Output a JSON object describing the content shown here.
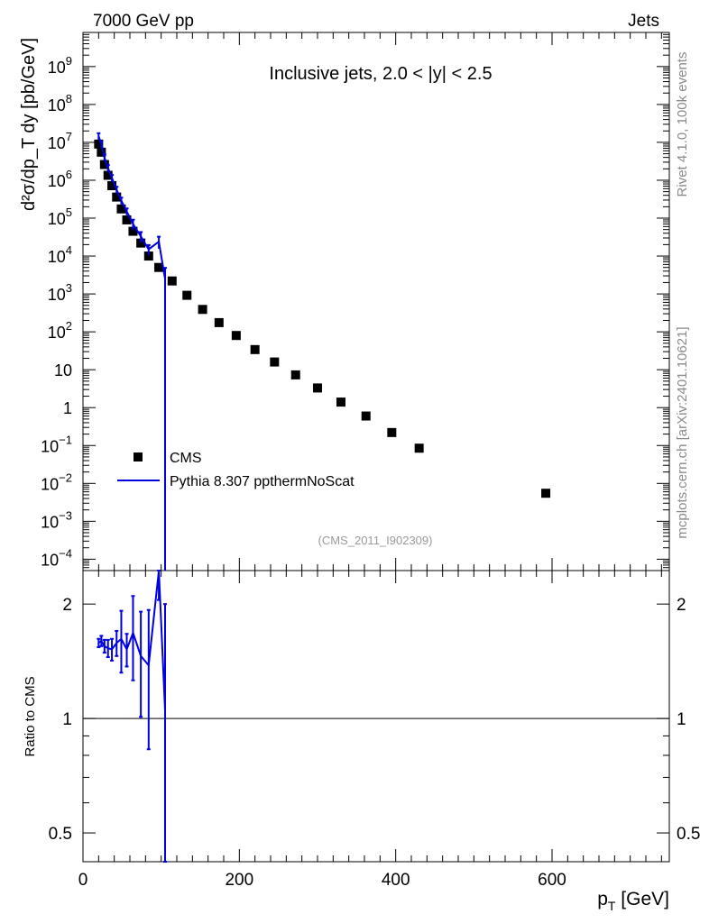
{
  "header": {
    "left": "7000 GeV pp",
    "right": "Jets"
  },
  "side_labels": {
    "rivet": "Rivet 4.1.0,  100k events",
    "mcplots": "mcplots.cern.ch [arXiv:2401.10621]"
  },
  "chart_data": {
    "type": "scatter",
    "title": "Inclusive jets, 2.0 < |y| < 2.5",
    "analysis_id": "(CMS_2011_I902309)",
    "xlabel_main": "p",
    "xlabel_sub": "T",
    "xlabel_unit": " [GeV]",
    "ylabel_main": "d²σ/dp_T dy [pb/GeV]",
    "ylabel_ratio": "Ratio to CMS",
    "xlim": [
      0,
      750
    ],
    "ylim_log10": [
      -4.3,
      9.9
    ],
    "ratio_ylim": [
      0.42,
      2.45
    ],
    "x_ticks": [
      0,
      200,
      400,
      600
    ],
    "x_tick_labels": [
      "0",
      "200",
      "400",
      "600"
    ],
    "y_ticks_log10": [
      -4,
      -3,
      -2,
      -1,
      0,
      1,
      2,
      3,
      4,
      5,
      6,
      7,
      8,
      9
    ],
    "y_tick_labels": [
      {
        "base": "10",
        "exp": "−4"
      },
      {
        "base": "10",
        "exp": "−3"
      },
      {
        "base": "10",
        "exp": "−2"
      },
      {
        "base": "10",
        "exp": "−1"
      },
      {
        "base": "1",
        "exp": ""
      },
      {
        "base": "10",
        "exp": ""
      },
      {
        "base": "10",
        "exp": "2"
      },
      {
        "base": "10",
        "exp": "3"
      },
      {
        "base": "10",
        "exp": "4"
      },
      {
        "base": "10",
        "exp": "5"
      },
      {
        "base": "10",
        "exp": "6"
      },
      {
        "base": "10",
        "exp": "7"
      },
      {
        "base": "10",
        "exp": "8"
      },
      {
        "base": "10",
        "exp": "9"
      }
    ],
    "ratio_ticks": [
      0.5,
      1,
      2
    ],
    "ratio_tick_labels": [
      "0.5",
      "1",
      "2"
    ],
    "legend": [
      {
        "name": "CMS",
        "marker": "square",
        "color": "#000000"
      },
      {
        "name": "Pythia 8.307 ppthermNoScat",
        "marker": "line",
        "color": "#0000e0"
      }
    ],
    "series": [
      {
        "name": "CMS",
        "color": "#000000",
        "x": [
          20,
          23.5,
          27.5,
          32,
          37,
          43,
          49,
          56,
          64,
          74,
          84,
          97,
          114,
          133,
          153,
          174,
          196,
          220,
          245,
          272,
          300,
          330,
          362,
          395,
          430,
          592
        ],
        "y": [
          9000000.0,
          5500000.0,
          2600000.0,
          1350000.0,
          720000.0,
          360000.0,
          175000.0,
          90000.0,
          45000.0,
          22000.0,
          10000.0,
          5000.0,
          2200.0,
          920.0,
          390.0,
          175.0,
          80.0,
          34.0,
          16.0,
          7.3,
          3.3,
          1.4,
          0.6,
          0.22,
          0.085,
          0.0055
        ]
      },
      {
        "name": "Pythia 8.307 ppthermNoScat",
        "color": "#0000e0",
        "x": [
          20,
          23.5,
          27.5,
          32,
          37,
          43,
          49,
          56,
          64,
          74,
          84,
          97,
          105
        ],
        "y": [
          14500000.0,
          8800000.0,
          4000000.0,
          2100000.0,
          1150000.0,
          560000.0,
          290000.0,
          150000.0,
          70000.0,
          33000.0,
          15000.0,
          24000.0,
          2500.0
        ],
        "yerr_rel": [
          0.2,
          0.2,
          0.2,
          0.2,
          0.2,
          0.2,
          0.2,
          0.2,
          0.3,
          0.3,
          0.3,
          0.35,
          0.95
        ],
        "ratio": [
          1.58,
          1.6,
          1.55,
          1.53,
          1.52,
          1.58,
          1.62,
          1.52,
          1.68,
          1.46,
          1.38,
          2.45,
          1.05
        ],
        "ratio_err": [
          0.04,
          0.05,
          0.06,
          0.08,
          0.1,
          0.12,
          0.3,
          0.15,
          0.42,
          0.45,
          0.55,
          0.4,
          0.95
        ]
      }
    ]
  }
}
